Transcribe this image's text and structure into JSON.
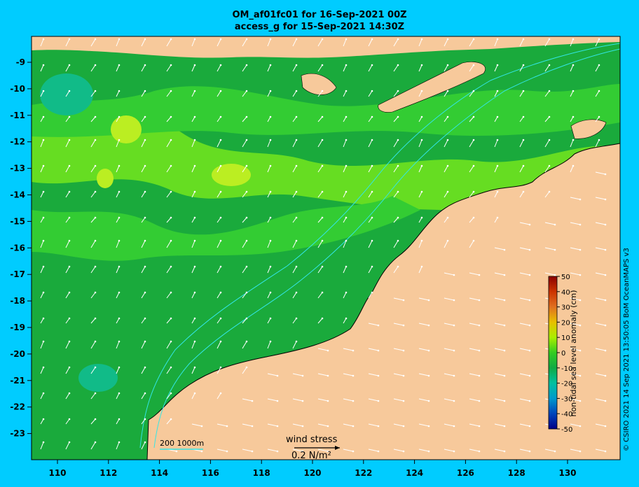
{
  "header": {
    "title_line1": "OM_af01fc01 for 16-Sep-2021 00Z",
    "title_line2": "access_g for 15-Sep-2021 14:30Z"
  },
  "axes": {
    "lon_ticks": [
      "110",
      "112",
      "114",
      "116",
      "118",
      "120",
      "122",
      "124",
      "126",
      "128",
      "130"
    ],
    "lat_ticks": [
      "-9",
      "-10",
      "-11",
      "-12",
      "-13",
      "-14",
      "-15",
      "-16",
      "-17",
      "-18",
      "-19",
      "-20",
      "-21",
      "-22",
      "-23"
    ]
  },
  "colorbar": {
    "label": "non-tidal sea level anomaly (cm)",
    "ticks": [
      "50",
      "40",
      "30",
      "20",
      "10",
      "0",
      "-10",
      "-20",
      "-30",
      "-40",
      "-50"
    ]
  },
  "legend": {
    "bathymetry": "200  1000m",
    "wind_label": "wind stress",
    "wind_scale": "0.2 N/m²"
  },
  "credit": "© CSIRO 2021  14 Sep 2021 13:50:05 BoM OceanMAPS v3",
  "colors": {
    "ocean_base": "#1aaa3c",
    "ocean_light": "#66dd22",
    "ocean_mid": "#33cc33",
    "land": "#f7c99b",
    "frame": "#00ccff",
    "contour": "#33e6e6"
  }
}
